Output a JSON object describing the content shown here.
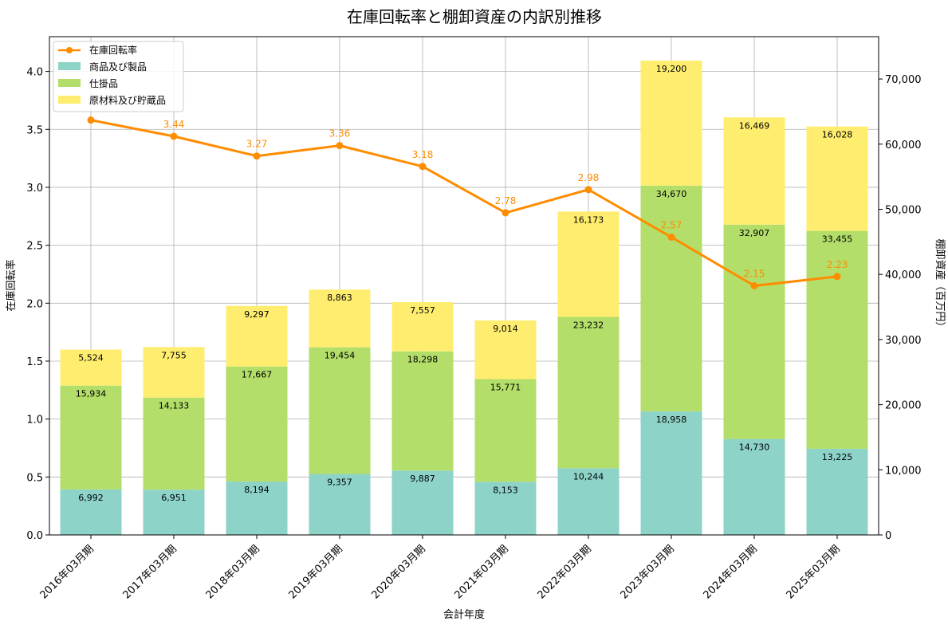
{
  "chart_data": {
    "type": "bar",
    "title": "在庫回転率と棚卸資産の内訳別推移",
    "xlabel": "会計年度",
    "ylabel_left": "在庫回転率",
    "ylabel_right": "棚卸資産（百万円）",
    "ylim_left": [
      0,
      4.3
    ],
    "ylim_right": [
      0,
      76500
    ],
    "yticks_left": [
      "0.0",
      "0.5",
      "1.0",
      "1.5",
      "2.0",
      "2.5",
      "3.0",
      "3.5",
      "4.0"
    ],
    "yticks_right": [
      "0",
      "10,000",
      "20,000",
      "30,000",
      "40,000",
      "50,000",
      "60,000",
      "70,000"
    ],
    "grid": true,
    "legend_position": "top-left",
    "categories": [
      "2016年03月期",
      "2017年03月期",
      "2018年03月期",
      "2019年03月期",
      "2020年03月期",
      "2021年03月期",
      "2022年03月期",
      "2023年03月期",
      "2024年03月期",
      "2025年03月期"
    ],
    "series": [
      {
        "name": "商品及び製品",
        "kind": "stacked-bar",
        "axis": "right",
        "color": "#8dd3c7",
        "values": [
          6992,
          6951,
          8194,
          9357,
          9887,
          8153,
          10244,
          18958,
          14730,
          13225
        ],
        "labels": [
          "6,992",
          "6,951",
          "8,194",
          "9,357",
          "9,887",
          "8,153",
          "10,244",
          "18,958",
          "14,730",
          "13,225"
        ]
      },
      {
        "name": "仕掛品",
        "kind": "stacked-bar",
        "axis": "right",
        "color": "#b3de69",
        "values": [
          15934,
          14133,
          17667,
          19454,
          18298,
          15771,
          23232,
          34670,
          32907,
          33455
        ],
        "labels": [
          "15,934",
          "14,133",
          "17,667",
          "19,454",
          "18,298",
          "15,771",
          "23,232",
          "34,670",
          "32,907",
          "33,455"
        ]
      },
      {
        "name": "原材料及び貯蔵品",
        "kind": "stacked-bar",
        "axis": "right",
        "color": "#ffed6f",
        "values": [
          5524,
          7755,
          9297,
          8863,
          7557,
          9014,
          16173,
          19200,
          16469,
          16028
        ],
        "labels": [
          "5,524",
          "7,755",
          "9,297",
          "8,863",
          "7,557",
          "9,014",
          "16,173",
          "19,200",
          "16,469",
          "16,028"
        ]
      },
      {
        "name": "在庫回転率",
        "kind": "line",
        "axis": "left",
        "color": "#ff8c00",
        "values": [
          3.58,
          3.44,
          3.27,
          3.36,
          3.18,
          2.78,
          2.98,
          2.57,
          2.15,
          2.23
        ],
        "labels": [
          "",
          "3.44",
          "3.27",
          "3.36",
          "3.18",
          "2.78",
          "2.98",
          "2.57",
          "2.15",
          "2.23"
        ]
      }
    ]
  }
}
